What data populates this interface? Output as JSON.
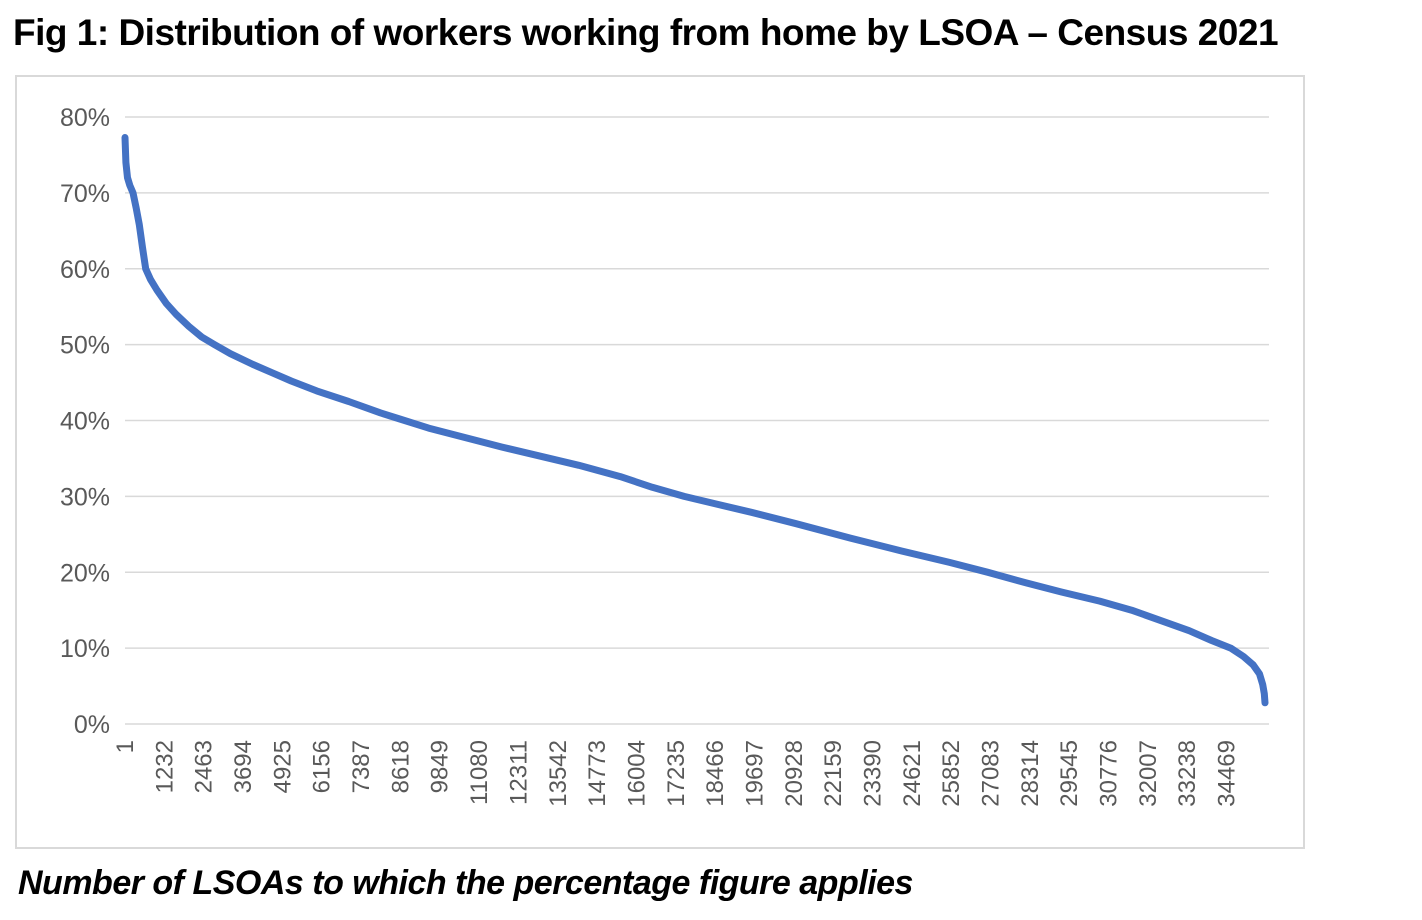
{
  "figure": {
    "title": "Fig 1: Distribution of workers working from home by LSOA – Census 2021",
    "caption": "Number of LSOAs to which the percentage figure applies"
  },
  "colors": {
    "line": "#4472C4",
    "gridline": "#d9d9d9",
    "tick_label": "#595959",
    "frame_border": "#d9d9d9",
    "background": "#ffffff"
  },
  "chart_data": {
    "type": "line",
    "title": "Fig 1: Distribution of workers working from home by LSOA – Census 2021",
    "xlabel": "Number of LSOAs to which the percentage figure applies",
    "ylabel": "",
    "grid": true,
    "legend_position": "none",
    "xlim": [
      1,
      35672
    ],
    "ylim": [
      0,
      80
    ],
    "y_ticks": [
      {
        "label": "0%",
        "value": 0
      },
      {
        "label": "10%",
        "value": 10
      },
      {
        "label": "20%",
        "value": 20
      },
      {
        "label": "30%",
        "value": 30
      },
      {
        "label": "40%",
        "value": 40
      },
      {
        "label": "50%",
        "value": 50
      },
      {
        "label": "60%",
        "value": 60
      },
      {
        "label": "70%",
        "value": 70
      },
      {
        "label": "80%",
        "value": 80
      }
    ],
    "x_ticks": [
      {
        "label": "1",
        "value": 1
      },
      {
        "label": "1232",
        "value": 1232
      },
      {
        "label": "2463",
        "value": 2463
      },
      {
        "label": "3694",
        "value": 3694
      },
      {
        "label": "4925",
        "value": 4925
      },
      {
        "label": "6156",
        "value": 6156
      },
      {
        "label": "7387",
        "value": 7387
      },
      {
        "label": "8618",
        "value": 8618
      },
      {
        "label": "9849",
        "value": 9849
      },
      {
        "label": "11080",
        "value": 11080
      },
      {
        "label": "12311",
        "value": 12311
      },
      {
        "label": "13542",
        "value": 13542
      },
      {
        "label": "14773",
        "value": 14773
      },
      {
        "label": "16004",
        "value": 16004
      },
      {
        "label": "17235",
        "value": 17235
      },
      {
        "label": "18466",
        "value": 18466
      },
      {
        "label": "19697",
        "value": 19697
      },
      {
        "label": "20928",
        "value": 20928
      },
      {
        "label": "22159",
        "value": 22159
      },
      {
        "label": "23390",
        "value": 23390
      },
      {
        "label": "24621",
        "value": 24621
      },
      {
        "label": "25852",
        "value": 25852
      },
      {
        "label": "27083",
        "value": 27083
      },
      {
        "label": "28314",
        "value": 28314
      },
      {
        "label": "29545",
        "value": 29545
      },
      {
        "label": "30776",
        "value": 30776
      },
      {
        "label": "32007",
        "value": 32007
      },
      {
        "label": "33238",
        "value": 33238
      },
      {
        "label": "34469",
        "value": 34469
      }
    ],
    "points": [
      [
        1,
        77.3
      ],
      [
        30,
        74.0
      ],
      [
        80,
        72.0
      ],
      [
        150,
        71.0
      ],
      [
        250,
        70.0
      ],
      [
        350,
        68.0
      ],
      [
        450,
        65.8
      ],
      [
        550,
        62.8
      ],
      [
        650,
        60.0
      ],
      [
        800,
        58.6
      ],
      [
        1000,
        57.2
      ],
      [
        1300,
        55.4
      ],
      [
        1600,
        54.0
      ],
      [
        2000,
        52.4
      ],
      [
        2400,
        51.0
      ],
      [
        2800,
        50.0
      ],
      [
        3300,
        48.8
      ],
      [
        4000,
        47.4
      ],
      [
        4600,
        46.3
      ],
      [
        5200,
        45.2
      ],
      [
        6000,
        43.9
      ],
      [
        7000,
        42.5
      ],
      [
        8000,
        41.0
      ],
      [
        8600,
        40.2
      ],
      [
        9500,
        39.0
      ],
      [
        10500,
        37.9
      ],
      [
        11800,
        36.5
      ],
      [
        13000,
        35.3
      ],
      [
        14200,
        34.1
      ],
      [
        15500,
        32.6
      ],
      [
        16500,
        31.2
      ],
      [
        17500,
        30.0
      ],
      [
        18500,
        29.0
      ],
      [
        19600,
        27.9
      ],
      [
        21000,
        26.4
      ],
      [
        22700,
        24.5
      ],
      [
        24300,
        22.8
      ],
      [
        25800,
        21.3
      ],
      [
        27000,
        20.0
      ],
      [
        28200,
        18.6
      ],
      [
        29300,
        17.4
      ],
      [
        30500,
        16.2
      ],
      [
        31500,
        15.0
      ],
      [
        32500,
        13.5
      ],
      [
        33300,
        12.3
      ],
      [
        34000,
        11.0
      ],
      [
        34600,
        10.0
      ],
      [
        35000,
        8.9
      ],
      [
        35300,
        7.8
      ],
      [
        35500,
        6.6
      ],
      [
        35600,
        5.2
      ],
      [
        35650,
        4.0
      ],
      [
        35672,
        2.8
      ]
    ]
  }
}
